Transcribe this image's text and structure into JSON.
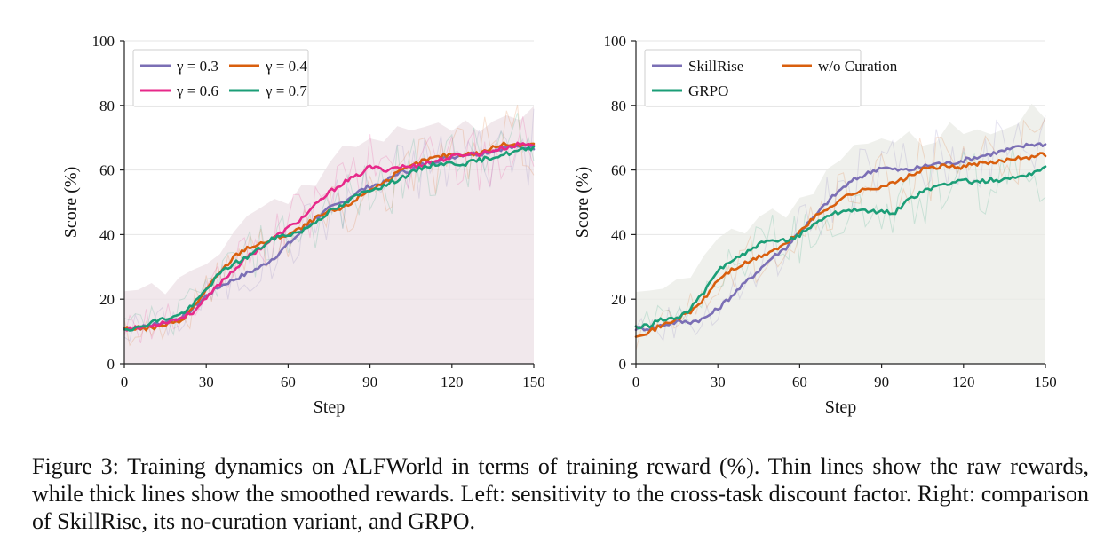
{
  "caption": {
    "figure_label": "Figure 3:",
    "text": "Training dynamics on ALFWorld in terms of training reward (%). Thin lines show the raw rewards, while thick lines show the smoothed rewards. Left: sensitivity to the cross-task discount factor. Right: comparison of SkillRise, its no-curation variant, and GRPO."
  },
  "chart_data": [
    {
      "type": "line",
      "title": "",
      "xlabel": "Step",
      "ylabel": "Score (%)",
      "xlim": [
        0,
        150
      ],
      "ylim": [
        0,
        100
      ],
      "xticks": [
        0,
        30,
        60,
        90,
        120,
        150
      ],
      "yticks": [
        0,
        20,
        40,
        60,
        80,
        100
      ],
      "grid": "horizontal",
      "legend_position": "top-left",
      "legend_columns": 2,
      "x": [
        0,
        5,
        10,
        15,
        20,
        25,
        30,
        35,
        40,
        45,
        50,
        55,
        60,
        65,
        70,
        75,
        80,
        85,
        90,
        95,
        100,
        105,
        110,
        115,
        120,
        125,
        130,
        135,
        140,
        145,
        150
      ],
      "series": [
        {
          "name": "γ = 0.3",
          "color": "#7b6fb5",
          "values": [
            11,
            11,
            12,
            13,
            14,
            17,
            21,
            24,
            26,
            28,
            30,
            33,
            37,
            41,
            45,
            48,
            50,
            53,
            55,
            56,
            59,
            60,
            62,
            63,
            64,
            65,
            65,
            66,
            67,
            67,
            67
          ]
        },
        {
          "name": "γ = 0.4",
          "color": "#d95f0e",
          "values": [
            11,
            11,
            11,
            12,
            13,
            17,
            23,
            28,
            33,
            36,
            37,
            39,
            40,
            42,
            45,
            47,
            48,
            51,
            54,
            56,
            59,
            61,
            63,
            64,
            65,
            65,
            65,
            67,
            68,
            68,
            68
          ]
        },
        {
          "name": "γ = 0.6",
          "color": "#e7298a",
          "values": [
            11,
            11,
            12,
            13,
            14,
            16,
            20,
            25,
            29,
            33,
            36,
            39,
            42,
            45,
            49,
            53,
            56,
            58,
            61,
            60,
            61,
            61,
            62,
            63,
            64,
            65,
            65,
            66,
            67,
            68,
            68
          ]
        },
        {
          "name": "γ = 0.7",
          "color": "#1b9e77",
          "values": [
            11,
            11,
            13,
            14,
            15,
            18,
            23,
            28,
            31,
            33,
            36,
            39,
            40,
            41,
            44,
            47,
            49,
            52,
            54,
            55,
            57,
            59,
            61,
            62,
            62,
            62,
            63,
            64,
            65,
            66,
            67
          ]
        }
      ]
    },
    {
      "type": "line",
      "title": "",
      "xlabel": "Step",
      "ylabel": "Score (%)",
      "xlim": [
        0,
        150
      ],
      "ylim": [
        0,
        100
      ],
      "xticks": [
        0,
        30,
        60,
        90,
        120,
        150
      ],
      "yticks": [
        0,
        20,
        40,
        60,
        80,
        100
      ],
      "grid": "horizontal",
      "legend_position": "top-left",
      "legend_columns": 2,
      "x": [
        0,
        5,
        10,
        15,
        20,
        25,
        30,
        35,
        40,
        45,
        50,
        55,
        60,
        65,
        70,
        75,
        80,
        85,
        90,
        95,
        100,
        105,
        110,
        115,
        120,
        125,
        130,
        135,
        140,
        145,
        150
      ],
      "series": [
        {
          "name": "SkillRise",
          "color": "#7b6fb5",
          "values": [
            11,
            11,
            12,
            13,
            13,
            14,
            17,
            21,
            25,
            29,
            33,
            36,
            41,
            45,
            50,
            54,
            57,
            59,
            61,
            60,
            60,
            61,
            62,
            62,
            63,
            64,
            65,
            66,
            67,
            68,
            68
          ]
        },
        {
          "name": "w/o Curation",
          "color": "#d95f0e",
          "values": [
            9,
            10,
            12,
            14,
            16,
            20,
            26,
            29,
            31,
            33,
            35,
            37,
            41,
            45,
            48,
            51,
            53,
            54,
            55,
            56,
            58,
            60,
            61,
            61,
            61,
            62,
            62,
            63,
            64,
            64,
            65
          ]
        },
        {
          "name": "GRPO",
          "color": "#1b9e77",
          "values": [
            11,
            12,
            14,
            14,
            17,
            22,
            29,
            32,
            34,
            37,
            38,
            38,
            40,
            43,
            46,
            47,
            48,
            47,
            47,
            47,
            51,
            53,
            55,
            56,
            57,
            56,
            57,
            57,
            58,
            59,
            61
          ]
        }
      ]
    }
  ]
}
